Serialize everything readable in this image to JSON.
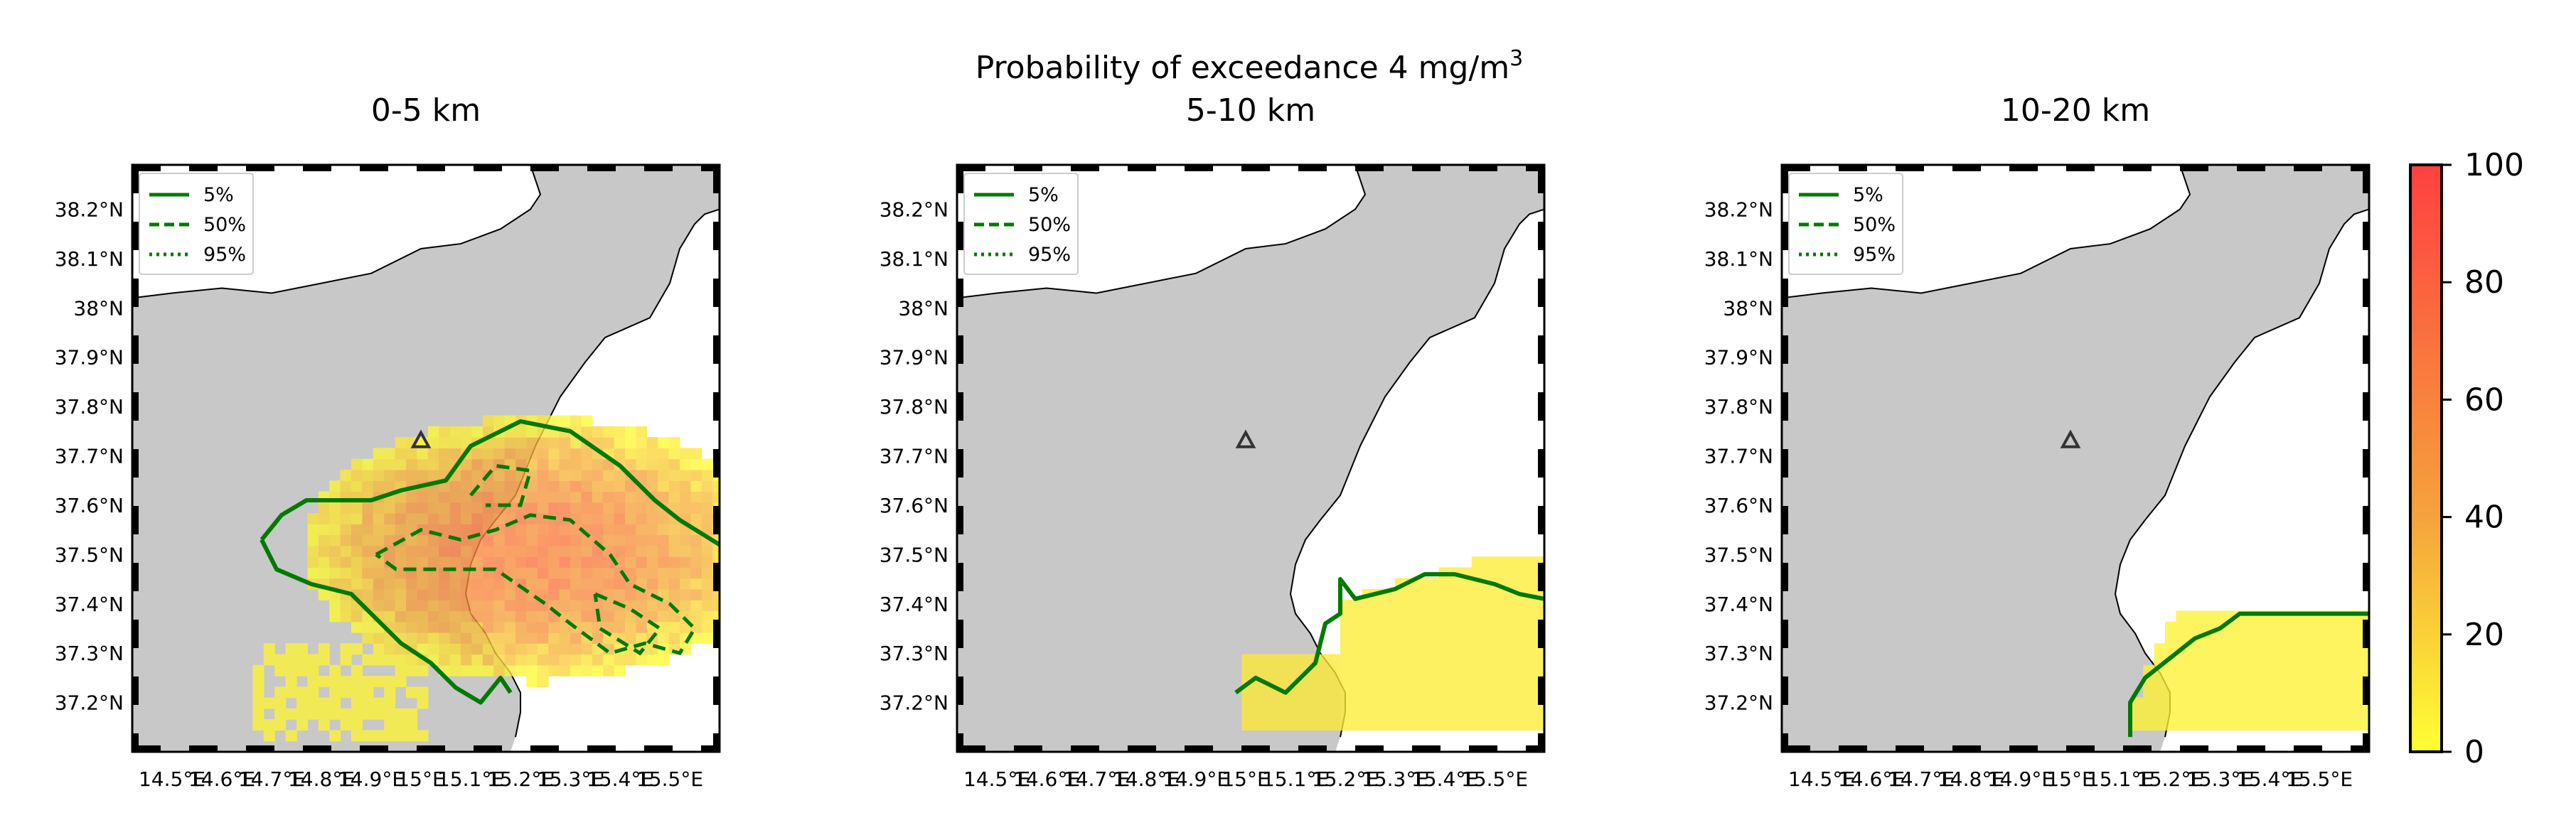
{
  "figure": {
    "title_prefix": "Probability of exceedance 4 mg/m",
    "title_superscript": "3"
  },
  "panels": [
    {
      "title": "0-5 km"
    },
    {
      "title": "5-10 km"
    },
    {
      "title": "10-20 km"
    }
  ],
  "axes": {
    "y_ticks": [
      "38.2°N",
      "38.1°N",
      "38°N",
      "37.9°N",
      "37.8°N",
      "37.7°N",
      "37.6°N",
      "37.5°N",
      "37.4°N",
      "37.3°N",
      "37.2°N"
    ],
    "x_ticks": [
      "14.5°E",
      "14.6°E",
      "14.7°E",
      "14.8°E",
      "14.9°E",
      "15°E",
      "15.1°E",
      "15.2°E",
      "15.3°E",
      "15.4°E",
      "15.5°E"
    ],
    "lat_range": [
      37.1,
      38.29
    ],
    "lon_range": [
      14.42,
      15.6
    ]
  },
  "legend": {
    "items": [
      {
        "label": "5%",
        "style": "solid"
      },
      {
        "label": "50%",
        "style": "dashed"
      },
      {
        "label": "95%",
        "style": "dotted"
      }
    ],
    "position": "upper-left",
    "line_color": "#007a00"
  },
  "colorbar": {
    "ticks": [
      "100",
      "80",
      "60",
      "40",
      "20",
      "0"
    ],
    "range": [
      0,
      100
    ],
    "colors": {
      "low": "#ffff33",
      "mid": "#f5a33c",
      "high": "#ff4040"
    }
  },
  "map": {
    "land_color": "#c8c8c8",
    "volcano_marker": "triangle",
    "volcano_position": {
      "lon": 15.0,
      "lat": 37.73
    }
  }
}
